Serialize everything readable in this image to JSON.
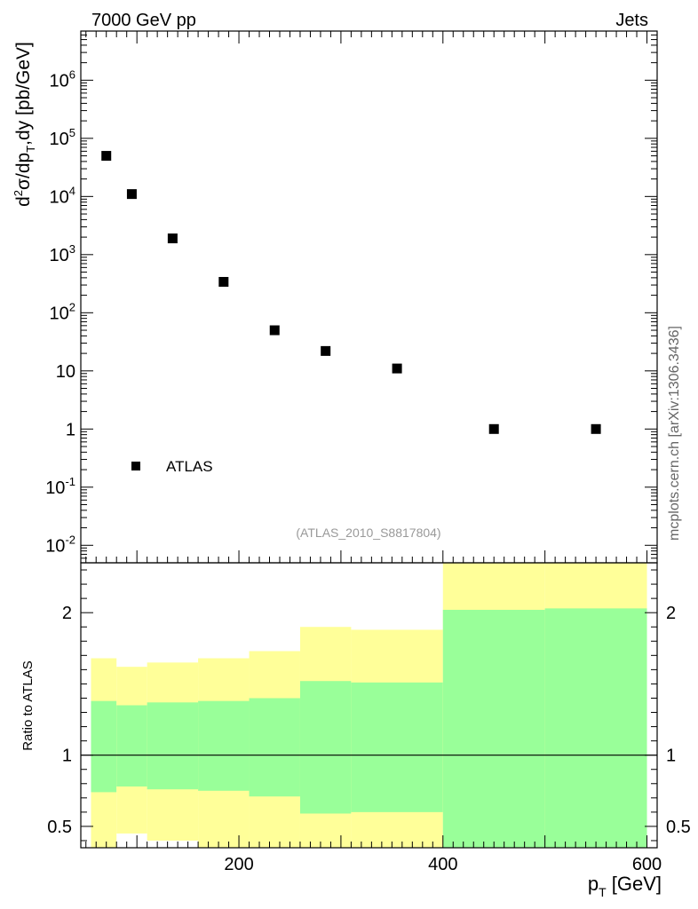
{
  "header": {
    "left": "7000 GeV pp",
    "right": "Jets"
  },
  "watermark": "mcplots.cern.ch [arXiv:1306.3436]",
  "analysis_tag": "(ATLAS_2010_S8817804)",
  "colors": {
    "inner_band": "#99ff99",
    "outer_band": "#ffff99",
    "marker": "#000000"
  },
  "chart_data": [
    {
      "type": "scatter",
      "ylabel": "d²σ/dp_T,dy [pb/GeV]",
      "yscale": "log",
      "ylim": [
        0.005,
        7000000
      ],
      "xlim": [
        45,
        610
      ],
      "series": [
        {
          "name": "ATLAS",
          "x": [
            70,
            95,
            135,
            185,
            235,
            285,
            355,
            450,
            550
          ],
          "y": [
            50000,
            11000,
            1900,
            340,
            50,
            22,
            11,
            1,
            1
          ]
        }
      ],
      "ytick_labels": [
        "10^{-2}",
        "10^{-1}",
        "1",
        "10",
        "10^{2}",
        "10^{3}",
        "10^{4}",
        "10^{5}",
        "10^{6}"
      ],
      "legend": {
        "label": "ATLAS",
        "position": "bottom-left"
      }
    },
    {
      "type": "area",
      "ylabel": "Ratio to ATLAS",
      "xlabel": "p_T [GeV]",
      "ylim": [
        0.35,
        2.35
      ],
      "xlim": [
        45,
        610
      ],
      "reference_line": 1,
      "bins": [
        {
          "lo": 55,
          "hi": 80,
          "inner": [
            0.74,
            1.38
          ],
          "outer": [
            0.35,
            1.68
          ]
        },
        {
          "lo": 80,
          "hi": 110,
          "inner": [
            0.78,
            1.35
          ],
          "outer": [
            0.45,
            1.62
          ]
        },
        {
          "lo": 110,
          "hi": 160,
          "inner": [
            0.76,
            1.37
          ],
          "outer": [
            0.4,
            1.65
          ]
        },
        {
          "lo": 160,
          "hi": 210,
          "inner": [
            0.75,
            1.38
          ],
          "outer": [
            0.35,
            1.68
          ]
        },
        {
          "lo": 210,
          "hi": 260,
          "inner": [
            0.71,
            1.4
          ],
          "outer": [
            0.35,
            1.73
          ]
        },
        {
          "lo": 260,
          "hi": 310,
          "inner": [
            0.59,
            1.52
          ],
          "outer": [
            0.35,
            1.9
          ]
        },
        {
          "lo": 310,
          "hi": 400,
          "inner": [
            0.6,
            1.51
          ],
          "outer": [
            0.35,
            1.88
          ]
        },
        {
          "lo": 400,
          "hi": 500,
          "inner": [
            0.35,
            2.02
          ],
          "outer": [
            0.35,
            2.4
          ]
        },
        {
          "lo": 500,
          "hi": 600,
          "inner": [
            0.35,
            2.03
          ],
          "outer": [
            0.35,
            2.4
          ]
        }
      ],
      "xticks": [
        200,
        400,
        600
      ],
      "ytick_labels": [
        "0.5",
        "1",
        "2"
      ],
      "ytick_values": [
        0.5,
        1,
        2
      ]
    }
  ]
}
